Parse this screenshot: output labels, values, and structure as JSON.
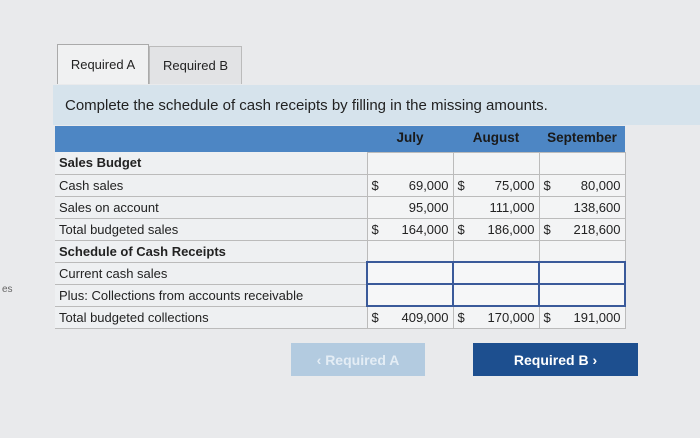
{
  "edge_text": "es",
  "tabs": [
    {
      "label": "Required A"
    },
    {
      "label": "Required B"
    }
  ],
  "instruction": "Complete the schedule of cash receipts by filling in the missing amounts.",
  "table": {
    "columns": [
      "July",
      "August",
      "September"
    ],
    "rows": [
      {
        "label": "Sales Budget",
        "bold": true,
        "values": [
          "",
          "",
          ""
        ]
      },
      {
        "label": "Cash sales",
        "values": [
          "$|69,000",
          "$|75,000",
          "$|80,000"
        ]
      },
      {
        "label": "Sales on account",
        "values": [
          "|95,000",
          "|111,000",
          "|138,600"
        ]
      },
      {
        "label": "Total budgeted sales",
        "values": [
          "$|164,000",
          "$|186,000",
          "$|218,600"
        ]
      },
      {
        "label": "Schedule of Cash Receipts",
        "bold": true,
        "values": [
          "",
          "",
          ""
        ]
      },
      {
        "label": "Current cash sales",
        "inputs": true,
        "values": [
          "",
          "",
          ""
        ]
      },
      {
        "label": "Plus: Collections from accounts receivable",
        "inputs": true,
        "values": [
          "",
          "",
          ""
        ]
      },
      {
        "label": "Total budgeted collections",
        "values": [
          "$|409,000",
          "$|170,000",
          "$|191,000"
        ]
      }
    ]
  },
  "buttons": {
    "prev": "‹ Required A",
    "next": "Required B ›"
  }
}
